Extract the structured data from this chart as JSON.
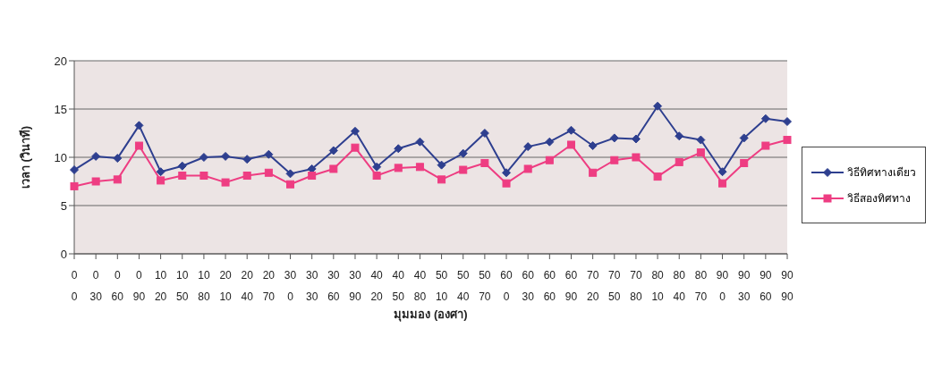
{
  "chart_data": {
    "type": "line",
    "xlabel": "มุมมอง (องศา)",
    "ylabel": "เวลา (วินาที)",
    "categories": [
      "0\n0",
      "0\n30",
      "0\n60",
      "0\n90",
      "10\n20",
      "10\n50",
      "10\n80",
      "20\n10",
      "20\n40",
      "20\n70",
      "30\n0",
      "30\n30",
      "30\n60",
      "30\n90",
      "40\n20",
      "40\n50",
      "40\n80",
      "50\n10",
      "50\n40",
      "50\n70",
      "60\n0",
      "60\n30",
      "60\n60",
      "60\n90",
      "70\n20",
      "70\n50",
      "70\n80",
      "80\n10",
      "80\n40",
      "80\n70",
      "90\n0",
      "90\n30",
      "90\n60",
      "90\n90"
    ],
    "series": [
      {
        "name": "วิธีทิศทางเดียว",
        "color": "#2e3f8f",
        "marker": "diamond",
        "values": [
          8.7,
          10.1,
          9.9,
          13.3,
          8.5,
          9.1,
          10.0,
          10.1,
          9.8,
          10.3,
          8.3,
          8.8,
          10.7,
          12.7,
          9.0,
          10.9,
          11.6,
          9.2,
          10.4,
          12.5,
          8.4,
          11.1,
          11.6,
          12.8,
          11.2,
          12.0,
          11.9,
          15.3,
          12.2,
          11.8,
          8.5,
          12.0,
          14.0,
          13.7
        ]
      },
      {
        "name": "วิธีสองทิศทาง",
        "color": "#ee3d82",
        "marker": "square",
        "values": [
          7.0,
          7.5,
          7.7,
          11.2,
          7.6,
          8.1,
          8.1,
          7.4,
          8.1,
          8.4,
          7.2,
          8.1,
          8.8,
          11.0,
          8.1,
          8.9,
          9.0,
          7.7,
          8.7,
          9.4,
          7.3,
          8.8,
          9.7,
          11.3,
          8.4,
          9.7,
          10.0,
          8.0,
          9.5,
          10.5,
          7.3,
          9.4,
          11.2,
          11.8
        ]
      }
    ],
    "ylim": [
      0,
      20
    ],
    "yticks": [
      0,
      5,
      10,
      15,
      20
    ],
    "grid": "y",
    "legend": "right"
  }
}
